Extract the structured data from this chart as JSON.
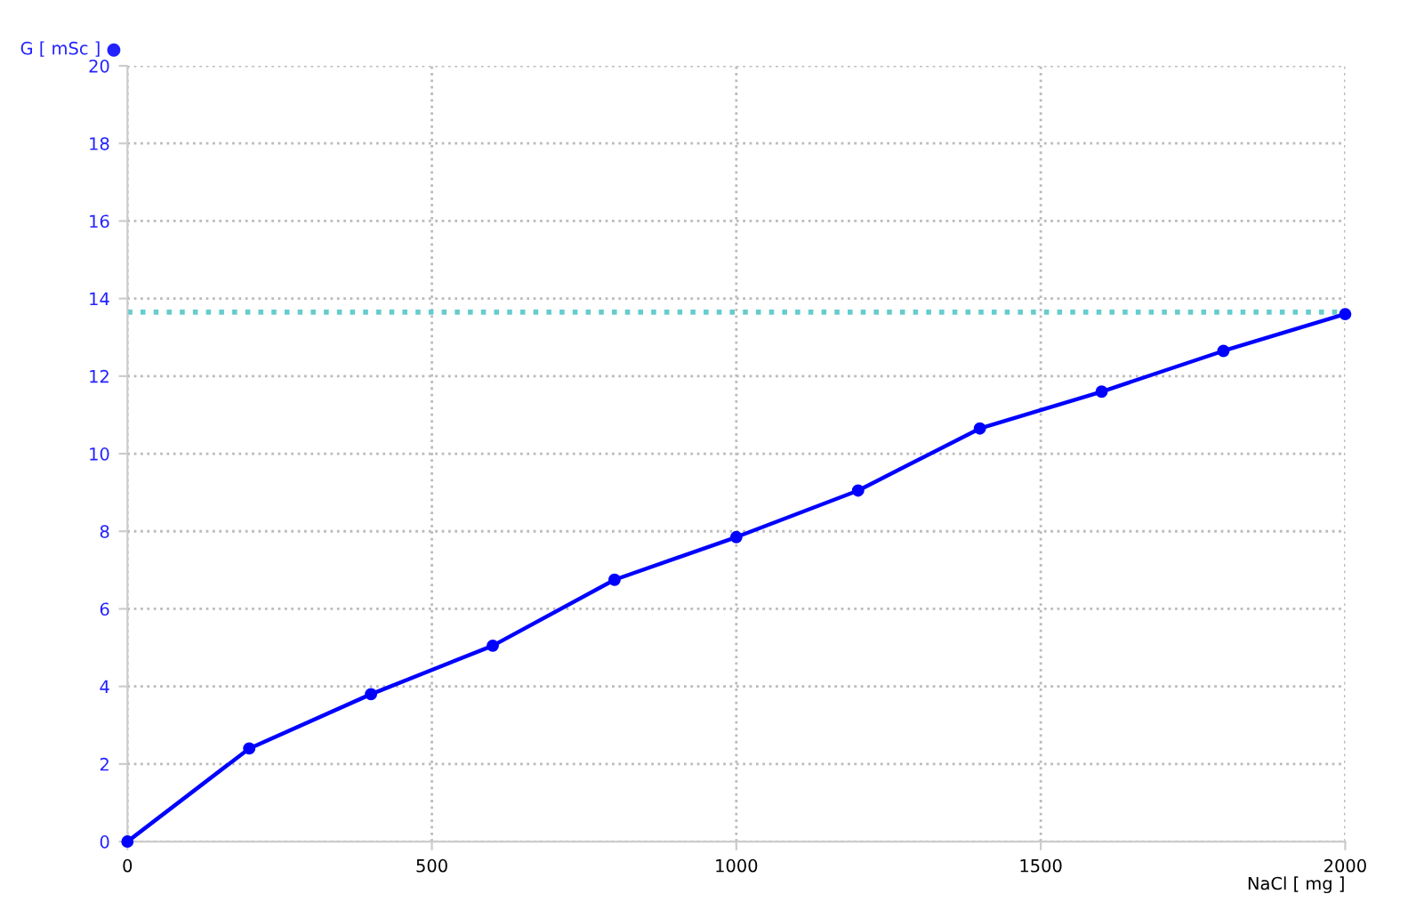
{
  "chart_data": {
    "type": "line",
    "ylabel": "G [ mSc ] ●",
    "xlabel": "NaCl [ mg ]",
    "x": [
      0,
      200,
      400,
      600,
      800,
      1000,
      1200,
      1400,
      1600,
      1800,
      2000
    ],
    "series": [
      {
        "color": "#0000ff",
        "values": [
          0,
          2.4,
          3.8,
          5.05,
          6.75,
          7.85,
          9.05,
          10.65,
          11.6,
          12.65,
          13.6
        ]
      }
    ],
    "xlim": [
      0,
      2000
    ],
    "xticks": [
      0,
      500,
      1000,
      1500,
      2000
    ],
    "ylim": [
      0,
      20
    ],
    "yticks": [
      0,
      2,
      4,
      6,
      8,
      10,
      12,
      14,
      16,
      18,
      20
    ],
    "ref_lines": [
      {
        "axis": "y",
        "value": 13.65,
        "color": "#66cccc",
        "line_style": "dotted"
      }
    ],
    "grid": true,
    "marker": "circle",
    "line_style": "solid"
  }
}
